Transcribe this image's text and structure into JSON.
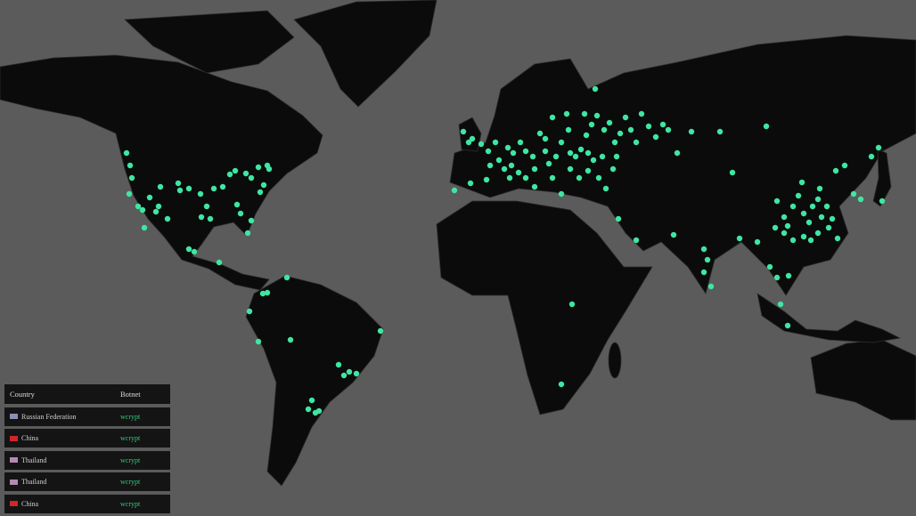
{
  "colors": {
    "ocean": "#5b5b5b",
    "land": "#0b0b0b",
    "marker": "#3fe6a3",
    "botnet_text": "#37c97f"
  },
  "table": {
    "headers": {
      "country": "Country",
      "botnet": "Botnet"
    },
    "rows": [
      {
        "country": "Russian Federation",
        "botnet": "wcrypt",
        "flag_color": "#8a8fb5"
      },
      {
        "country": "China",
        "botnet": "wcrypt",
        "flag_color": "#d0262b"
      },
      {
        "country": "Thailand",
        "botnet": "wcrypt",
        "flag_color": "#b58ab0"
      },
      {
        "country": "Thailand",
        "botnet": "wcrypt",
        "flag_color": "#b58ab0"
      },
      {
        "country": "China",
        "botnet": "wcrypt",
        "flag_color": "#d0262b"
      }
    ]
  }
}
